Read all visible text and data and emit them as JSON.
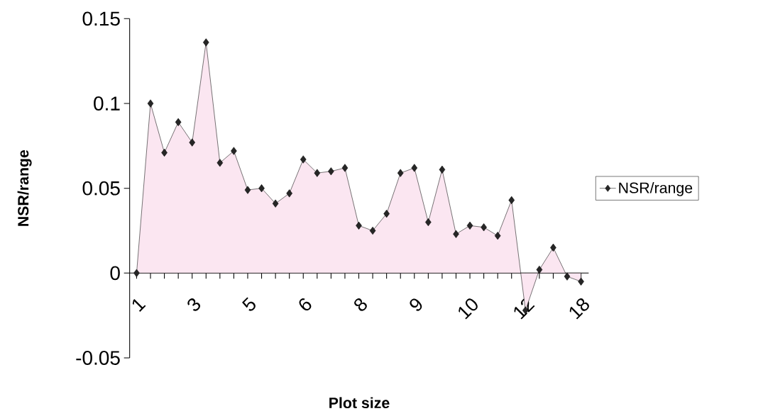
{
  "chart_data": {
    "type": "area",
    "xlabel": "Plot size",
    "ylabel": "NSR/range",
    "categories": [
      "1",
      null,
      null,
      null,
      "3",
      null,
      null,
      null,
      "5",
      null,
      null,
      null,
      "6",
      null,
      null,
      null,
      "8",
      null,
      null,
      null,
      "9",
      null,
      null,
      null,
      "10",
      null,
      null,
      null,
      "12",
      null,
      null,
      null,
      "18"
    ],
    "series": [
      {
        "name": "NSR/range",
        "color": "#fbe6f1",
        "values": [
          0,
          0.1,
          0.071,
          0.089,
          0.077,
          0.136,
          0.065,
          0.072,
          0.049,
          0.05,
          0.041,
          0.047,
          0.067,
          0.059,
          0.06,
          0.062,
          0.028,
          0.025,
          0.035,
          0.059,
          0.062,
          0.03,
          0.061,
          0.023,
          0.028,
          0.027,
          0.022,
          0.043,
          -0.022,
          0.002,
          0.015,
          -0.002,
          -0.005
        ]
      }
    ],
    "ylim": [
      -0.05,
      0.15
    ],
    "yticks": [
      -0.05,
      0,
      0.05,
      0.1,
      0.15
    ],
    "grid": false,
    "legend": "right",
    "marker": "diamond",
    "line_style": "solid"
  }
}
